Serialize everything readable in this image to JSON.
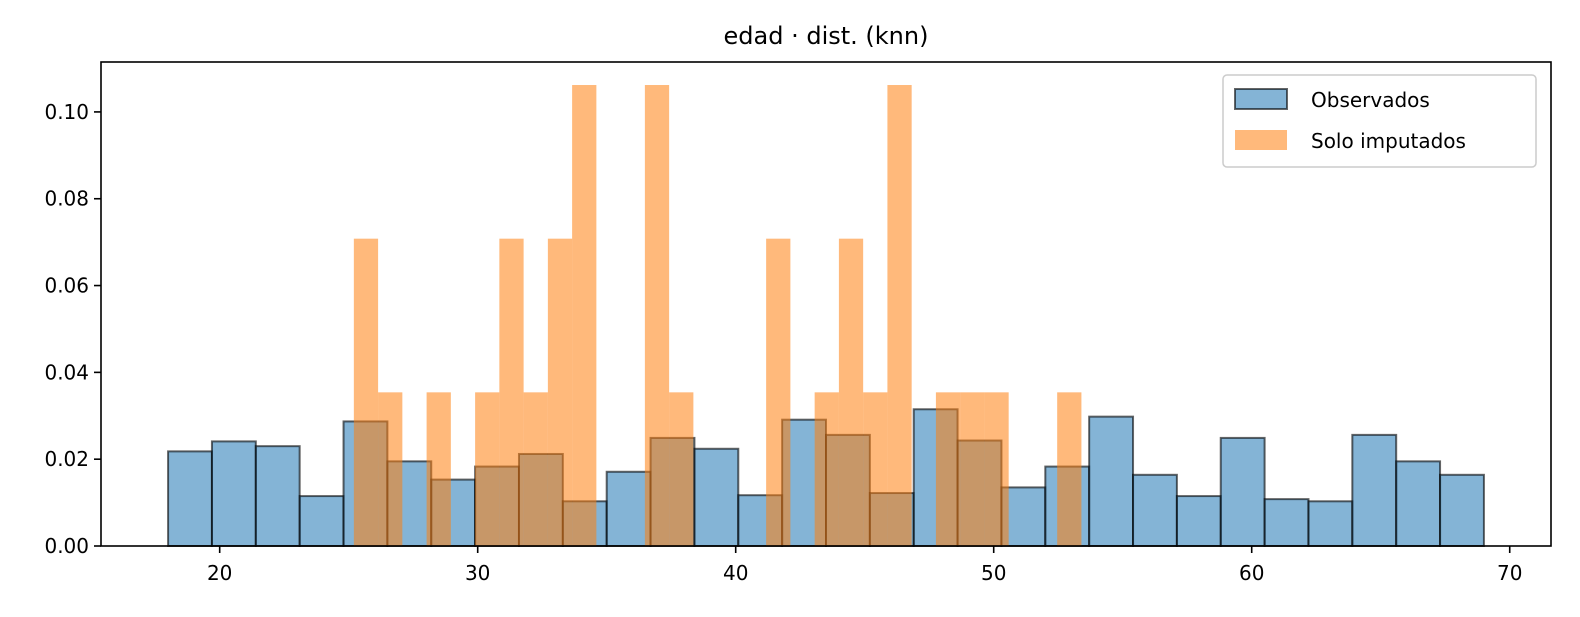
{
  "chart_data": {
    "type": "bar",
    "title": "edad · dist. (knn)",
    "xlabel": "",
    "ylabel": "",
    "xlim": [
      15.4,
      71.6
    ],
    "ylim": [
      0,
      0.1115
    ],
    "xticks": [
      20,
      30,
      40,
      50,
      60,
      70
    ],
    "yticks": [
      0.0,
      0.02,
      0.04,
      0.06,
      0.08,
      0.1
    ],
    "xtick_labels": [
      "20",
      "30",
      "40",
      "50",
      "60",
      "70"
    ],
    "ytick_labels": [
      "0.00",
      "0.02",
      "0.04",
      "0.06",
      "0.08",
      "0.10"
    ],
    "legend": {
      "placement": "top-right",
      "entries": [
        "Observados",
        "Solo imputados"
      ]
    },
    "grid": false,
    "series": [
      {
        "name": "Observados",
        "color": "#1f77b4",
        "edgecolor": "#000000",
        "bins": [
          {
            "x0": 18.0,
            "x1": 19.7,
            "y": 0.0218
          },
          {
            "x0": 19.7,
            "x1": 21.4,
            "y": 0.0241
          },
          {
            "x0": 21.4,
            "x1": 23.1,
            "y": 0.023
          },
          {
            "x0": 23.1,
            "x1": 24.8,
            "y": 0.0115
          },
          {
            "x0": 24.8,
            "x1": 26.5,
            "y": 0.0287
          },
          {
            "x0": 26.5,
            "x1": 28.2,
            "y": 0.0195
          },
          {
            "x0": 28.2,
            "x1": 29.9,
            "y": 0.0153
          },
          {
            "x0": 29.9,
            "x1": 31.6,
            "y": 0.0183
          },
          {
            "x0": 31.6,
            "x1": 33.3,
            "y": 0.0212
          },
          {
            "x0": 33.3,
            "x1": 35.0,
            "y": 0.0103
          },
          {
            "x0": 35.0,
            "x1": 36.7,
            "y": 0.0171
          },
          {
            "x0": 36.7,
            "x1": 38.4,
            "y": 0.0249
          },
          {
            "x0": 38.4,
            "x1": 40.1,
            "y": 0.0224
          },
          {
            "x0": 40.1,
            "x1": 41.8,
            "y": 0.0117
          },
          {
            "x0": 41.8,
            "x1": 43.5,
            "y": 0.0291
          },
          {
            "x0": 43.5,
            "x1": 45.2,
            "y": 0.0256
          },
          {
            "x0": 45.2,
            "x1": 46.9,
            "y": 0.0122
          },
          {
            "x0": 46.9,
            "x1": 48.6,
            "y": 0.0315
          },
          {
            "x0": 48.6,
            "x1": 50.3,
            "y": 0.0243
          },
          {
            "x0": 50.3,
            "x1": 52.0,
            "y": 0.0135
          },
          {
            "x0": 52.0,
            "x1": 53.7,
            "y": 0.0183
          },
          {
            "x0": 53.7,
            "x1": 55.4,
            "y": 0.0298
          },
          {
            "x0": 55.4,
            "x1": 57.1,
            "y": 0.0164
          },
          {
            "x0": 57.1,
            "x1": 58.8,
            "y": 0.0115
          },
          {
            "x0": 58.8,
            "x1": 60.5,
            "y": 0.0249
          },
          {
            "x0": 60.5,
            "x1": 62.2,
            "y": 0.0108
          },
          {
            "x0": 62.2,
            "x1": 63.9,
            "y": 0.0103
          },
          {
            "x0": 63.9,
            "x1": 65.6,
            "y": 0.0256
          },
          {
            "x0": 65.6,
            "x1": 67.3,
            "y": 0.0195
          },
          {
            "x0": 67.3,
            "x1": 69.0,
            "y": 0.0164
          }
        ]
      },
      {
        "name": "Solo imputados",
        "color": "#ff7f0e",
        "edgecolor": "none",
        "bins": [
          {
            "x0": 25.2,
            "x1": 26.14,
            "y": 0.0708
          },
          {
            "x0": 26.14,
            "x1": 27.08,
            "y": 0.0354
          },
          {
            "x0": 27.08,
            "x1": 28.02,
            "y": 0.0
          },
          {
            "x0": 28.02,
            "x1": 28.96,
            "y": 0.0354
          },
          {
            "x0": 28.96,
            "x1": 29.9,
            "y": 0.0
          },
          {
            "x0": 29.9,
            "x1": 30.84,
            "y": 0.0354
          },
          {
            "x0": 30.84,
            "x1": 31.78,
            "y": 0.0708
          },
          {
            "x0": 31.78,
            "x1": 32.72,
            "y": 0.0354
          },
          {
            "x0": 32.72,
            "x1": 33.66,
            "y": 0.0708
          },
          {
            "x0": 33.66,
            "x1": 34.6,
            "y": 0.1062
          },
          {
            "x0": 34.6,
            "x1": 35.54,
            "y": 0.0
          },
          {
            "x0": 35.54,
            "x1": 36.48,
            "y": 0.0
          },
          {
            "x0": 36.48,
            "x1": 37.42,
            "y": 0.1062
          },
          {
            "x0": 37.42,
            "x1": 38.36,
            "y": 0.0354
          },
          {
            "x0": 38.36,
            "x1": 39.3,
            "y": 0.0
          },
          {
            "x0": 39.3,
            "x1": 40.24,
            "y": 0.0
          },
          {
            "x0": 40.24,
            "x1": 41.18,
            "y": 0.0
          },
          {
            "x0": 41.18,
            "x1": 42.12,
            "y": 0.0708
          },
          {
            "x0": 42.12,
            "x1": 43.06,
            "y": 0.0
          },
          {
            "x0": 43.06,
            "x1": 44.0,
            "y": 0.0354
          },
          {
            "x0": 44.0,
            "x1": 44.94,
            "y": 0.0708
          },
          {
            "x0": 44.94,
            "x1": 45.88,
            "y": 0.0354
          },
          {
            "x0": 45.88,
            "x1": 46.82,
            "y": 0.1062
          },
          {
            "x0": 46.82,
            "x1": 47.76,
            "y": 0.0
          },
          {
            "x0": 47.76,
            "x1": 48.7,
            "y": 0.0354
          },
          {
            "x0": 48.7,
            "x1": 49.64,
            "y": 0.0354
          },
          {
            "x0": 49.64,
            "x1": 50.58,
            "y": 0.0354
          },
          {
            "x0": 50.58,
            "x1": 51.52,
            "y": 0.0
          },
          {
            "x0": 51.52,
            "x1": 52.46,
            "y": 0.0
          },
          {
            "x0": 52.46,
            "x1": 53.4,
            "y": 0.0354
          }
        ]
      }
    ]
  }
}
